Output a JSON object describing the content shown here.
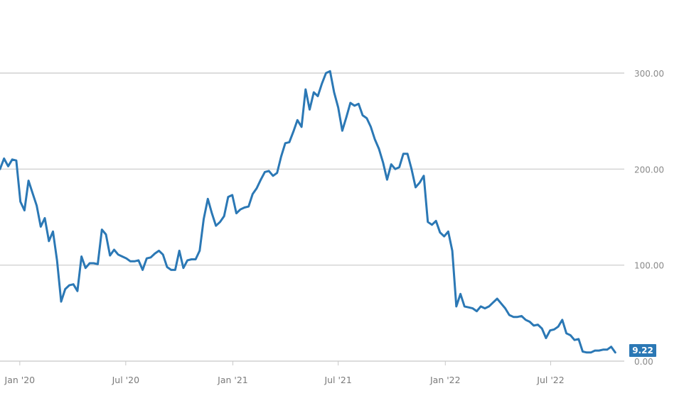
{
  "chart_data": {
    "type": "line",
    "ylim": [
      0,
      300
    ],
    "y_ticks": [
      "300.00",
      "200.00",
      "100.00",
      "0.00"
    ],
    "x_ticks": [
      "Jan '20",
      "Jul '20",
      "Jan '21",
      "Jul '21",
      "Jan '22",
      "Jul '22"
    ],
    "grid": true,
    "last_value_label": "9.22",
    "colors": {
      "line": "#2b78b5",
      "grid": "#c8c8c8",
      "label": "#8a8a8a"
    },
    "series": [
      {
        "x": [
          "2019-11-28",
          "2019-12-05",
          "2019-12-12",
          "2019-12-19",
          "2019-12-26",
          "2020-01-02",
          "2020-01-09",
          "2020-01-16",
          "2020-01-23",
          "2020-01-30",
          "2020-02-06",
          "2020-02-13",
          "2020-02-20",
          "2020-02-27",
          "2020-03-05",
          "2020-03-12",
          "2020-03-19",
          "2020-03-26",
          "2020-04-02",
          "2020-04-09",
          "2020-04-16",
          "2020-04-23",
          "2020-04-30",
          "2020-05-07",
          "2020-05-14",
          "2020-05-21",
          "2020-05-28",
          "2020-06-04",
          "2020-06-11",
          "2020-06-18",
          "2020-06-25",
          "2020-07-02",
          "2020-07-09",
          "2020-07-16",
          "2020-07-23",
          "2020-07-30",
          "2020-08-06",
          "2020-08-13",
          "2020-08-20",
          "2020-08-27",
          "2020-09-03",
          "2020-09-10",
          "2020-09-17",
          "2020-09-24",
          "2020-10-01",
          "2020-10-08",
          "2020-10-15",
          "2020-10-22",
          "2020-10-29",
          "2020-11-05",
          "2020-11-12",
          "2020-11-19",
          "2020-11-26",
          "2020-12-03",
          "2020-12-10",
          "2020-12-17",
          "2020-12-24",
          "2020-12-31",
          "2021-01-07",
          "2021-01-14",
          "2021-01-21",
          "2021-01-28",
          "2021-02-04",
          "2021-02-11",
          "2021-02-18",
          "2021-02-25",
          "2021-03-04",
          "2021-03-11",
          "2021-03-18",
          "2021-03-25",
          "2021-04-01",
          "2021-04-08",
          "2021-04-15",
          "2021-04-22",
          "2021-04-29",
          "2021-05-06",
          "2021-05-13",
          "2021-05-20",
          "2021-05-27",
          "2021-06-03",
          "2021-06-10",
          "2021-06-17",
          "2021-06-24",
          "2021-07-01",
          "2021-07-08",
          "2021-07-15",
          "2021-07-22",
          "2021-07-29",
          "2021-08-05",
          "2021-08-12",
          "2021-08-19",
          "2021-08-26",
          "2021-09-02",
          "2021-09-09",
          "2021-09-16",
          "2021-09-23",
          "2021-09-30",
          "2021-10-07",
          "2021-10-14",
          "2021-10-21",
          "2021-10-28",
          "2021-11-04",
          "2021-11-11",
          "2021-11-18",
          "2021-11-25",
          "2021-12-02",
          "2021-12-09",
          "2021-12-16",
          "2021-12-23",
          "2021-12-30",
          "2022-01-06",
          "2022-01-13",
          "2022-01-20",
          "2022-01-27",
          "2022-02-03",
          "2022-02-10",
          "2022-02-17",
          "2022-02-24",
          "2022-03-03",
          "2022-03-10",
          "2022-03-17",
          "2022-03-24",
          "2022-03-31",
          "2022-04-07",
          "2022-04-14",
          "2022-04-21",
          "2022-04-28",
          "2022-05-05",
          "2022-05-12",
          "2022-05-19",
          "2022-05-26",
          "2022-06-02",
          "2022-06-09",
          "2022-06-16",
          "2022-06-23",
          "2022-06-30",
          "2022-07-07",
          "2022-07-14",
          "2022-07-21",
          "2022-07-28",
          "2022-08-04",
          "2022-08-11",
          "2022-08-18",
          "2022-08-25",
          "2022-09-01",
          "2022-09-08",
          "2022-09-15",
          "2022-09-22",
          "2022-09-29",
          "2022-10-06",
          "2022-10-13",
          "2022-10-20"
        ],
        "values": [
          200,
          211,
          203,
          210,
          209,
          166,
          157,
          188,
          175,
          162,
          140,
          149,
          125,
          135,
          105,
          62,
          75,
          79,
          80,
          73,
          109,
          97,
          102,
          102,
          101,
          137,
          132,
          110,
          116,
          111,
          109,
          107,
          104,
          104,
          105,
          95,
          107,
          108,
          112,
          115,
          111,
          98,
          95,
          95,
          115,
          97,
          105,
          106,
          106,
          115,
          148,
          169,
          154,
          141,
          145,
          151,
          171,
          173,
          154,
          158,
          160,
          161,
          174,
          180,
          189,
          197,
          198,
          193,
          196,
          213,
          227,
          228,
          239,
          251,
          244,
          283,
          262,
          280,
          276,
          289,
          300,
          302,
          280,
          264,
          240,
          254,
          269,
          266,
          268,
          256,
          253,
          244,
          231,
          221,
          207,
          189,
          205,
          200,
          202,
          216,
          216,
          200,
          181,
          186,
          193,
          145,
          142,
          146,
          134,
          130,
          135,
          115,
          57,
          70,
          57,
          56,
          55,
          52,
          57,
          55,
          57,
          61,
          65,
          60,
          55,
          48,
          46,
          46,
          47,
          43,
          41,
          37,
          38,
          34,
          24,
          32,
          33,
          36,
          43,
          29,
          27,
          22,
          23,
          10,
          9,
          9,
          11,
          11,
          12,
          12,
          15,
          9
        ]
      }
    ]
  }
}
